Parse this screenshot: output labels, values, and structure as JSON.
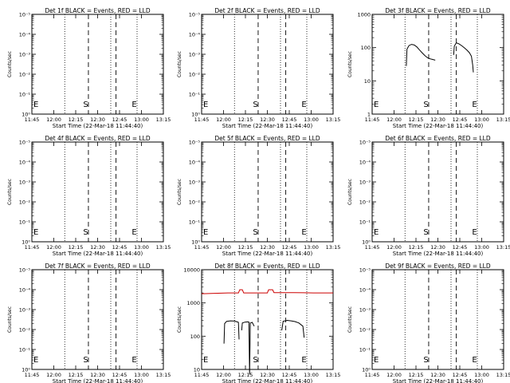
{
  "chart_data": [
    {
      "type": "line",
      "title": "Det 1f BLACK = Events, RED = LLD",
      "xlabel": "Start Time (22-Mar-18 11:44:40)",
      "ylabel": "Counts/sec",
      "x_ticks": [
        "11:45",
        "12:00",
        "12:15",
        "12:30",
        "12:45",
        "13:00",
        "13:15"
      ],
      "y_ticks": [
        "10⁰",
        "10⁻¹",
        "10⁻²",
        "10⁻³",
        "10⁻⁴",
        "10⁻⁵"
      ],
      "marks": [
        "S",
        "E"
      ],
      "series": []
    },
    {
      "type": "line",
      "title": "Det 2f BLACK = Events, RED = LLD",
      "xlabel": "Start Time (22-Mar-18 11:44:40)",
      "ylabel": "Counts/sec",
      "x_ticks": [
        "11:45",
        "12:00",
        "12:15",
        "12:30",
        "12:45",
        "13:00",
        "13:15"
      ],
      "y_ticks": [
        "10⁰",
        "10⁻¹",
        "10⁻²",
        "10⁻³",
        "10⁻⁴",
        "10⁻⁵"
      ],
      "marks": [
        "S",
        "E"
      ],
      "series": []
    },
    {
      "type": "line",
      "title": "Det 3f BLACK = Events, RED = LLD",
      "xlabel": "Start Time (22-Mar-18 11:44:40)",
      "ylabel": "Counts/sec",
      "x_ticks": [
        "11:45",
        "12:00",
        "12:15",
        "12:30",
        "12:45",
        "13:00",
        "13:15"
      ],
      "y_ticks": [
        "1",
        "10",
        "100",
        "1000"
      ],
      "marks": [
        "S",
        "E"
      ],
      "series": [
        {
          "color": "#000000",
          "points": [
            [
              0.26,
              28
            ],
            [
              0.265,
              90
            ],
            [
              0.28,
              115
            ],
            [
              0.3,
              125
            ],
            [
              0.32,
              120
            ],
            [
              0.34,
              105
            ],
            [
              0.36,
              85
            ],
            [
              0.38,
              70
            ],
            [
              0.4,
              58
            ],
            [
              0.42,
              50
            ],
            [
              0.44,
              46
            ],
            [
              0.46,
              44
            ],
            [
              0.48,
              42
            ]
          ]
        },
        {
          "color": "#000000",
          "points": [
            [
              0.62,
              60
            ],
            [
              0.625,
              110
            ],
            [
              0.64,
              140
            ],
            [
              0.66,
              130
            ],
            [
              0.68,
              115
            ],
            [
              0.7,
              100
            ],
            [
              0.72,
              85
            ],
            [
              0.74,
              70
            ],
            [
              0.755,
              55
            ],
            [
              0.765,
              30
            ],
            [
              0.77,
              18
            ]
          ]
        }
      ]
    },
    {
      "type": "line",
      "title": "Det 4f BLACK = Events, RED = LLD",
      "xlabel": "Start Time (22-Mar-18 11:44:40)",
      "ylabel": "Counts/sec",
      "x_ticks": [
        "11:45",
        "12:00",
        "12:15",
        "12:30",
        "12:45",
        "13:00",
        "13:15"
      ],
      "y_ticks": [
        "10⁰",
        "10⁻¹",
        "10⁻²",
        "10⁻³",
        "10⁻⁴",
        "10⁻⁵"
      ],
      "marks": [
        "S",
        "E"
      ],
      "series": []
    },
    {
      "type": "line",
      "title": "Det 5f BLACK = Events, RED = LLD",
      "xlabel": "Start Time (22-Mar-18 11:44:40)",
      "ylabel": "Counts/sec",
      "x_ticks": [
        "11:45",
        "12:00",
        "12:15",
        "12:30",
        "12:45",
        "13:00",
        "13:15"
      ],
      "y_ticks": [
        "10⁰",
        "10⁻¹",
        "10⁻²",
        "10⁻³",
        "10⁻⁴",
        "10⁻⁵"
      ],
      "marks": [
        "S",
        "E"
      ],
      "series": []
    },
    {
      "type": "line",
      "title": "Det 6f BLACK = Events, RED = LLD",
      "xlabel": "Start Time (22-Mar-18 11:44:40)",
      "ylabel": "Counts/sec",
      "x_ticks": [
        "11:45",
        "12:00",
        "12:15",
        "12:30",
        "12:45",
        "13:00",
        "13:15"
      ],
      "y_ticks": [
        "10⁰",
        "10⁻¹",
        "10⁻²",
        "10⁻³",
        "10⁻⁴",
        "10⁻⁵"
      ],
      "marks": [
        "S",
        "E"
      ],
      "series": []
    },
    {
      "type": "line",
      "title": "Det 7f BLACK = Events, RED = LLD",
      "xlabel": "Start Time (22-Mar-18 11:44:40)",
      "ylabel": "Counts/sec",
      "x_ticks": [
        "11:45",
        "12:00",
        "12:15",
        "12:30",
        "12:45",
        "13:00",
        "13:15"
      ],
      "y_ticks": [
        "10⁰",
        "10⁻¹",
        "10⁻²",
        "10⁻³",
        "10⁻⁴",
        "10⁻⁵"
      ],
      "marks": [
        "S",
        "E"
      ],
      "series": []
    },
    {
      "type": "line",
      "title": "Det 8f BLACK = Events, RED = LLD",
      "xlabel": "Start Time (22-Mar-18 11:44:40)",
      "ylabel": "Counts/sec",
      "x_ticks": [
        "11:45",
        "12:00",
        "12:15",
        "12:30",
        "12:45",
        "13:00",
        "13:15"
      ],
      "y_ticks": [
        "10",
        "100",
        "1000",
        "10000"
      ],
      "marks": [
        "S",
        "E"
      ],
      "series": [
        {
          "color": "#cc0000",
          "points": [
            [
              0.0,
              1900
            ],
            [
              0.1,
              1950
            ],
            [
              0.2,
              2000
            ],
            [
              0.28,
              2000
            ],
            [
              0.29,
              2500
            ],
            [
              0.31,
              2500
            ],
            [
              0.32,
              2000
            ],
            [
              0.5,
              2000
            ],
            [
              0.51,
              2500
            ],
            [
              0.54,
              2500
            ],
            [
              0.55,
              2050
            ],
            [
              0.7,
              2050
            ],
            [
              0.85,
              2000
            ],
            [
              1.0,
              2000
            ]
          ]
        },
        {
          "color": "#000000",
          "points": [
            [
              0.17,
              60
            ],
            [
              0.175,
              240
            ],
            [
              0.19,
              280
            ],
            [
              0.22,
              290
            ],
            [
              0.25,
              285
            ],
            [
              0.27,
              270
            ],
            [
              0.28,
              260
            ],
            [
              0.285,
              80
            ]
          ]
        },
        {
          "color": "#000000",
          "points": [
            [
              0.305,
              150
            ],
            [
              0.31,
              250
            ],
            [
              0.33,
              265
            ],
            [
              0.35,
              270
            ],
            [
              0.36,
              265
            ],
            [
              0.365,
              7
            ],
            [
              0.37,
              250
            ],
            [
              0.385,
              260
            ],
            [
              0.4,
              200
            ]
          ]
        },
        {
          "color": "#000000",
          "points": [
            [
              0.61,
              150
            ],
            [
              0.62,
              280
            ],
            [
              0.65,
              300
            ],
            [
              0.68,
              290
            ],
            [
              0.71,
              275
            ],
            [
              0.74,
              250
            ],
            [
              0.77,
              200
            ],
            [
              0.78,
              90
            ]
          ]
        }
      ]
    },
    {
      "type": "line",
      "title": "Det 9f BLACK = Events, RED = LLD",
      "xlabel": "Start Time (22-Mar-18 11:44:40)",
      "ylabel": "Counts/sec",
      "x_ticks": [
        "11:45",
        "12:00",
        "12:15",
        "12:30",
        "12:45",
        "13:00",
        "13:15"
      ],
      "y_ticks": [
        "10⁰",
        "10⁻¹",
        "10⁻²",
        "10⁻³",
        "10⁻⁴",
        "10⁻⁵"
      ],
      "marks": [
        "S",
        "E"
      ],
      "series": []
    }
  ]
}
